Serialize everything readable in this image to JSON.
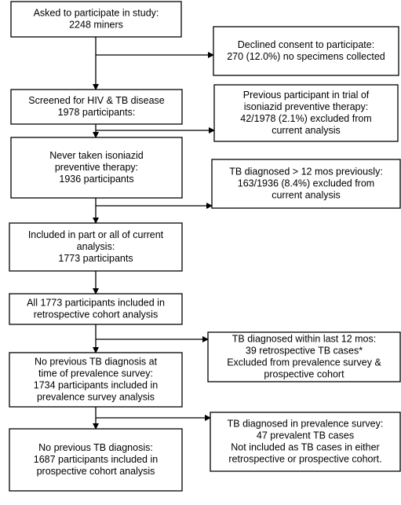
{
  "nodes": [
    {
      "lines": [
        "Asked to participate in study:",
        "2248 miners"
      ]
    },
    {
      "lines": [
        "Screened for HIV & TB disease",
        "1978 participants:"
      ]
    },
    {
      "lines": [
        "Never taken isoniazid",
        "preventive therapy:",
        "1936 participants"
      ]
    },
    {
      "lines": [
        "Included in part or all of current",
        "analysis:",
        "1773 participants"
      ]
    },
    {
      "lines": [
        "All 1773 participants included in",
        "retrospective cohort analysis"
      ]
    },
    {
      "lines": [
        "No previous TB diagnosis at",
        "time of prevalence survey:",
        "1734 participants included in",
        "prevalence survey analysis"
      ]
    },
    {
      "lines": [
        "No previous TB diagnosis:",
        "1687 participants included in",
        "prospective cohort analysis"
      ]
    }
  ],
  "exclusions": [
    {
      "lines": [
        "Declined consent to participate:",
        "270 (12.0%) no specimens collected"
      ]
    },
    {
      "lines": [
        "Previous participant in trial of",
        "isoniazid preventive therapy:",
        "42/1978 (2.1%) excluded from",
        "current analysis"
      ]
    },
    {
      "lines": [
        "TB diagnosed > 12 mos previously:",
        "163/1936 (8.4%) excluded from",
        "current analysis"
      ]
    },
    {
      "lines": [
        "TB diagnosed within last 12 mos:",
        "39 retrospective TB cases*",
        "Excluded from prevalence survey &",
        "prospective cohort"
      ]
    },
    {
      "lines": [
        "TB diagnosed in prevalence survey:",
        "47 prevalent TB cases",
        "Not included as TB cases in either",
        "retrospective or prospective cohort."
      ]
    }
  ]
}
